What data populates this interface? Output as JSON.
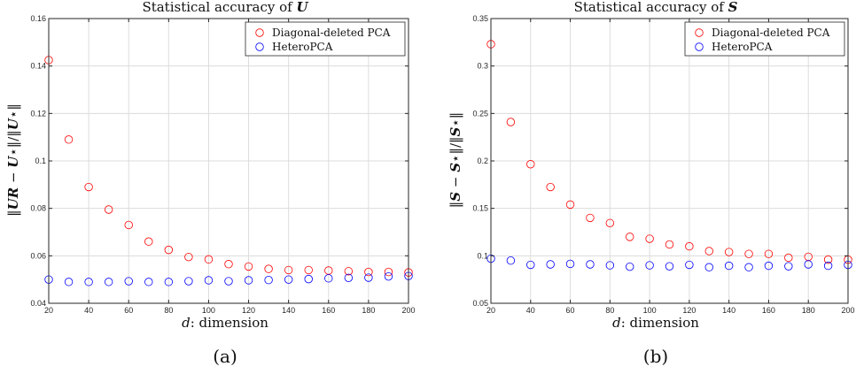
{
  "chart_data": [
    {
      "type": "scatter",
      "title": "Statistical accuracy of U",
      "xlabel": "d: dimension",
      "ylabel": "‖UR − U⋆‖/‖U⋆‖",
      "caption": "(a)",
      "xlim": [
        20,
        200
      ],
      "ylim": [
        0.04,
        0.16
      ],
      "xticks": [
        20,
        40,
        60,
        80,
        100,
        120,
        140,
        160,
        180,
        200
      ],
      "yticks": [
        0.04,
        0.06,
        0.08,
        0.1,
        0.12,
        0.14,
        0.16
      ],
      "xtick_labels": [
        "20",
        "40",
        "60",
        "80",
        "100",
        "120",
        "140",
        "160",
        "180",
        "200"
      ],
      "ytick_labels": [
        "0.04",
        "0.06",
        "0.08",
        "0.1",
        "0.12",
        "0.14",
        "0.16"
      ],
      "grid": true,
      "legend_position": "top-right",
      "x": [
        20,
        30,
        40,
        50,
        60,
        70,
        80,
        90,
        100,
        110,
        120,
        130,
        140,
        150,
        160,
        170,
        180,
        190,
        200
      ],
      "series": [
        {
          "name": "Diagonal-deleted PCA",
          "color": "#ff0000",
          "values": [
            0.1425,
            0.109,
            0.089,
            0.0795,
            0.073,
            0.066,
            0.0625,
            0.0595,
            0.0585,
            0.0565,
            0.0555,
            0.0545,
            0.054,
            0.054,
            0.0538,
            0.0535,
            0.0532,
            0.0532,
            0.053
          ]
        },
        {
          "name": "HeteroPCA",
          "color": "#0000ff",
          "values": [
            0.05,
            0.049,
            0.049,
            0.049,
            0.0493,
            0.049,
            0.049,
            0.0493,
            0.0497,
            0.0493,
            0.0497,
            0.0498,
            0.05,
            0.0502,
            0.0505,
            0.0507,
            0.0508,
            0.0513,
            0.0515
          ]
        }
      ]
    },
    {
      "type": "scatter",
      "title": "Statistical accuracy of S",
      "xlabel": "d: dimension",
      "ylabel": "‖S − S⋆‖/‖S⋆‖",
      "caption": "(b)",
      "xlim": [
        20,
        200
      ],
      "ylim": [
        0.05,
        0.35
      ],
      "xticks": [
        20,
        40,
        60,
        80,
        100,
        120,
        140,
        160,
        180,
        200
      ],
      "yticks": [
        0.05,
        0.1,
        0.15,
        0.2,
        0.25,
        0.3,
        0.35
      ],
      "xtick_labels": [
        "20",
        "40",
        "60",
        "80",
        "100",
        "120",
        "140",
        "160",
        "180",
        "200"
      ],
      "ytick_labels": [
        "0.05",
        "0.1",
        "0.15",
        "0.2",
        "0.25",
        "0.3",
        "0.35"
      ],
      "grid": true,
      "legend_position": "top-right",
      "x": [
        20,
        30,
        40,
        50,
        60,
        70,
        80,
        90,
        100,
        110,
        120,
        130,
        140,
        150,
        160,
        170,
        180,
        190,
        200
      ],
      "series": [
        {
          "name": "Diagonal-deleted PCA",
          "color": "#ff0000",
          "values": [
            0.323,
            0.241,
            0.1965,
            0.1725,
            0.154,
            0.14,
            0.1345,
            0.12,
            0.118,
            0.112,
            0.11,
            0.105,
            0.104,
            0.102,
            0.102,
            0.098,
            0.099,
            0.096,
            0.096
          ]
        },
        {
          "name": "HeteroPCA",
          "color": "#0000ff",
          "values": [
            0.097,
            0.095,
            0.0905,
            0.091,
            0.0915,
            0.091,
            0.09,
            0.0885,
            0.09,
            0.089,
            0.0905,
            0.088,
            0.0895,
            0.088,
            0.0895,
            0.089,
            0.091,
            0.0895,
            0.0905
          ]
        }
      ]
    }
  ]
}
